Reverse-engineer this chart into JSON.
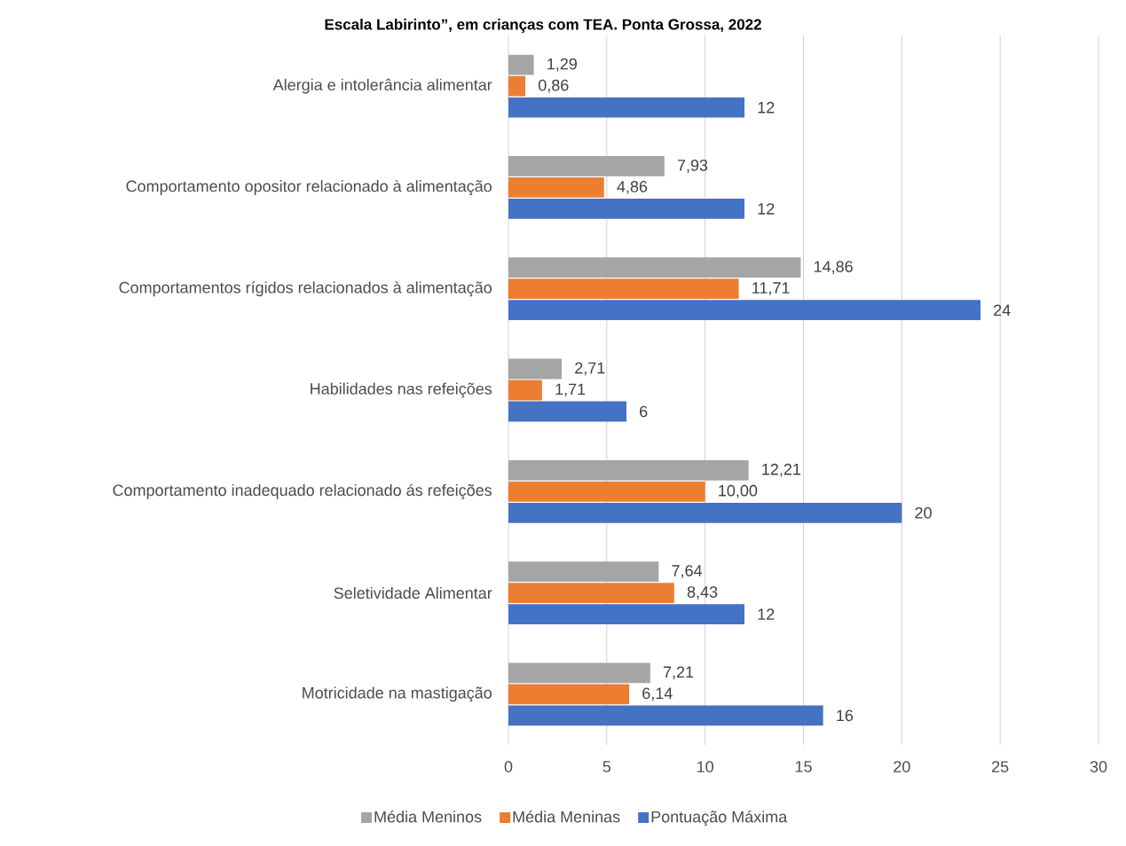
{
  "chart_data": {
    "type": "bar",
    "orientation": "horizontal",
    "title": "Escala Labirinto”, em crianças com TEA. Ponta Grossa, 2022",
    "categories": [
      "Alergia e intolerância alimentar",
      "Comportamento opositor relacionado à alimentação",
      "Comportamentos rígidos relacionados à alimentação",
      "Habilidades nas refeições",
      "Comportamento inadequado relacionado ás refeições",
      "Seletividade Alimentar",
      "Motricidade na mastigação"
    ],
    "series": [
      {
        "name": "Média Meninos",
        "color": "#a5a5a5",
        "values": [
          1.29,
          7.93,
          14.86,
          2.71,
          12.21,
          7.64,
          7.21
        ],
        "value_labels": [
          "1,29",
          "7,93",
          "14,86",
          "2,71",
          "12,21",
          "7,64",
          "7,21"
        ]
      },
      {
        "name": "Média Meninas",
        "color": "#ed7d31",
        "values": [
          0.86,
          4.86,
          11.71,
          1.71,
          10.0,
          8.43,
          6.14
        ],
        "value_labels": [
          "0,86",
          "4,86",
          "11,71",
          "1,71",
          "10,00",
          "8,43",
          "6,14"
        ]
      },
      {
        "name": "Pontuação Máxima",
        "color": "#4472c4",
        "values": [
          12,
          12,
          24,
          6,
          20,
          12,
          16
        ],
        "value_labels": [
          "12",
          "12",
          "24",
          "6",
          "20",
          "12",
          "16"
        ]
      }
    ],
    "xlim": [
      0,
      30
    ],
    "xticks": [
      0,
      5,
      10,
      15,
      20,
      25,
      30
    ],
    "grid": "x",
    "legend": "bottom"
  }
}
